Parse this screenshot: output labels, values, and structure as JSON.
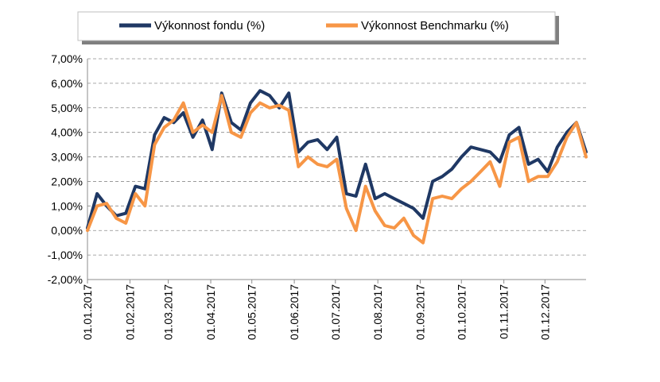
{
  "chart_data": {
    "type": "line",
    "title": "",
    "xlabel": "",
    "ylabel": "",
    "ylim": [
      -2,
      7
    ],
    "yticks": [
      -2,
      -1,
      0,
      1,
      2,
      3,
      4,
      5,
      6,
      7
    ],
    "ytick_labels": [
      "-2,00%",
      "-1,00%",
      "0,00%",
      "1,00%",
      "2,00%",
      "3,00%",
      "4,00%",
      "5,00%",
      "6,00%",
      "7,00%"
    ],
    "xtick_labels": [
      "01.01.2017",
      "01.02.2017",
      "01.03.2017",
      "01.04.2017",
      "01.05.2017",
      "01.06.2017",
      "01.07.2017",
      "01.08.2017",
      "01.09.2017",
      "01.10.2017",
      "01.11.2017",
      "01.12.2017"
    ],
    "grid": true,
    "legend_position": "top",
    "x": [
      "2017-01-01",
      "2017-01-08",
      "2017-01-15",
      "2017-01-22",
      "2017-01-29",
      "2017-02-05",
      "2017-02-12",
      "2017-02-19",
      "2017-02-26",
      "2017-03-05",
      "2017-03-12",
      "2017-03-19",
      "2017-03-26",
      "2017-04-02",
      "2017-04-09",
      "2017-04-16",
      "2017-04-23",
      "2017-04-30",
      "2017-05-07",
      "2017-05-14",
      "2017-05-21",
      "2017-05-28",
      "2017-06-04",
      "2017-06-11",
      "2017-06-18",
      "2017-06-25",
      "2017-07-02",
      "2017-07-09",
      "2017-07-16",
      "2017-07-23",
      "2017-07-30",
      "2017-08-06",
      "2017-08-13",
      "2017-08-20",
      "2017-08-27",
      "2017-09-03",
      "2017-09-10",
      "2017-09-17",
      "2017-09-24",
      "2017-10-01",
      "2017-10-08",
      "2017-10-15",
      "2017-10-22",
      "2017-10-29",
      "2017-11-05",
      "2017-11-12",
      "2017-11-19",
      "2017-11-26",
      "2017-12-03",
      "2017-12-10",
      "2017-12-17",
      "2017-12-24",
      "2017-12-31"
    ],
    "series": [
      {
        "name": "Výkonnost fondu (%)",
        "color": "#1f3864",
        "values": [
          0.1,
          1.5,
          1.0,
          0.6,
          0.7,
          1.8,
          1.7,
          3.9,
          4.6,
          4.4,
          4.8,
          3.8,
          4.5,
          3.3,
          5.6,
          4.4,
          4.1,
          5.2,
          5.7,
          5.5,
          5.0,
          5.6,
          3.2,
          3.6,
          3.7,
          3.3,
          3.8,
          1.5,
          1.4,
          2.7,
          1.3,
          1.5,
          1.3,
          1.1,
          0.9,
          0.5,
          2.0,
          2.2,
          2.5,
          3.0,
          3.4,
          3.3,
          3.2,
          2.8,
          3.9,
          4.2,
          2.7,
          2.9,
          2.4,
          3.4,
          4.0,
          4.4,
          3.2
        ]
      },
      {
        "name": "Výkonnost Benchmarku (%)",
        "color": "#f79646",
        "values": [
          0.0,
          1.0,
          1.1,
          0.5,
          0.3,
          1.5,
          1.0,
          3.5,
          4.2,
          4.5,
          5.2,
          4.0,
          4.3,
          4.0,
          5.5,
          4.0,
          3.8,
          4.8,
          5.2,
          5.0,
          5.1,
          4.9,
          2.6,
          3.0,
          2.7,
          2.6,
          2.9,
          0.9,
          0.0,
          1.8,
          0.8,
          0.2,
          0.1,
          0.5,
          -0.2,
          -0.5,
          1.3,
          1.4,
          1.3,
          1.7,
          2.0,
          2.4,
          2.8,
          1.8,
          3.6,
          3.8,
          2.0,
          2.2,
          2.2,
          2.8,
          3.8,
          4.4,
          3.0
        ]
      }
    ]
  }
}
